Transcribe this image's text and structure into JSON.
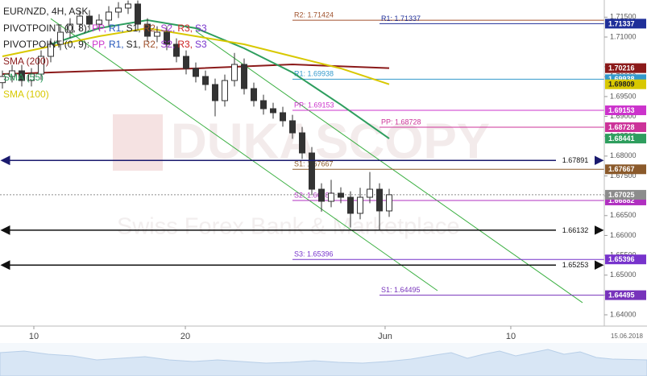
{
  "chart_data": {
    "type": "candlestick",
    "title": "EUR/NZD, 4H, ASK",
    "x": [
      0,
      1,
      2,
      3,
      4,
      5,
      6,
      7,
      8,
      9,
      10,
      11,
      12,
      13,
      14,
      15,
      16,
      17,
      18,
      19,
      20,
      21,
      22,
      23,
      24,
      25,
      26,
      27,
      28,
      29,
      30,
      31,
      32,
      33,
      34,
      35,
      36,
      37,
      38,
      39,
      40
    ],
    "open": [
      1.6985,
      1.70006,
      1.70148,
      1.69904,
      1.70066,
      1.70513,
      1.70817,
      1.71121,
      1.71324,
      1.71527,
      1.71324,
      1.71426,
      1.71629,
      1.7173,
      1.71832,
      1.71324,
      1.7102,
      1.71121,
      1.70817,
      1.70513,
      1.70209,
      1.70006,
      1.69803,
      1.69397,
      1.69904,
      1.7031,
      1.69701,
      1.69397,
      1.69194,
      1.69093,
      1.6889,
      1.68585,
      1.68078,
      1.67165,
      1.66861,
      1.67064,
      1.66962,
      1.66557,
      1.66962,
      1.67165,
      1.66618
    ],
    "high": [
      1.70156,
      1.70298,
      1.70298,
      1.70216,
      1.70663,
      1.70967,
      1.71271,
      1.71474,
      1.71677,
      1.71677,
      1.71576,
      1.71779,
      1.7188,
      1.7192,
      1.7192,
      1.71474,
      1.71271,
      1.71271,
      1.70967,
      1.70663,
      1.70359,
      1.70156,
      1.69953,
      1.70054,
      1.706,
      1.7046,
      1.69851,
      1.69547,
      1.69344,
      1.69243,
      1.6904,
      1.68735,
      1.68228,
      1.67315,
      1.674,
      1.67214,
      1.67112,
      1.672,
      1.676,
      1.67315,
      1.67175
    ],
    "low": [
      1.697,
      1.69856,
      1.69754,
      1.69754,
      1.69916,
      1.70363,
      1.70667,
      1.70971,
      1.71174,
      1.71174,
      1.71174,
      1.71276,
      1.71479,
      1.7158,
      1.71174,
      1.7087,
      1.7087,
      1.70667,
      1.70363,
      1.70059,
      1.69856,
      1.69653,
      1.69,
      1.69247,
      1.69754,
      1.69551,
      1.69247,
      1.69044,
      1.68943,
      1.6874,
      1.68435,
      1.67928,
      1.67015,
      1.666,
      1.66711,
      1.66812,
      1.662,
      1.66407,
      1.66812,
      1.6615,
      1.66468
    ],
    "close": [
      1.70006,
      1.70148,
      1.69904,
      1.70066,
      1.70513,
      1.70817,
      1.71121,
      1.71324,
      1.71527,
      1.71324,
      1.71426,
      1.71629,
      1.7173,
      1.71832,
      1.71324,
      1.7102,
      1.71121,
      1.70817,
      1.70513,
      1.70209,
      1.70006,
      1.69803,
      1.69397,
      1.69904,
      1.7031,
      1.69701,
      1.69397,
      1.69194,
      1.69093,
      1.6889,
      1.68585,
      1.68078,
      1.67165,
      1.66861,
      1.67064,
      1.66962,
      1.66557,
      1.66962,
      1.67165,
      1.66618,
      1.67025
    ],
    "up_color": "#ffffff",
    "down_color": "#333333",
    "current_price_color": "#8c8c8c",
    "xlim": [
      -0.25,
      62.25
    ],
    "xticks": [
      {
        "value": 3.25,
        "label": "10"
      },
      {
        "value": 18.92,
        "label": "20"
      },
      {
        "value": 39.58,
        "label": "Jun"
      },
      {
        "value": 52.58,
        "label": "10"
      }
    ],
    "ylim": [
      1.63716,
      1.71933
    ],
    "yticks": [
      {
        "value": 1.64,
        "label": "1.64000"
      },
      {
        "value": 1.645,
        "label": "1.64500"
      },
      {
        "value": 1.65,
        "label": "1.65000"
      },
      {
        "value": 1.655,
        "label": "1.65500"
      },
      {
        "value": 1.66,
        "label": "1.66000"
      },
      {
        "value": 1.665,
        "label": "1.66500"
      },
      {
        "value": 1.67,
        "label": "1.67000"
      },
      {
        "value": 1.675,
        "label": "1.67500"
      },
      {
        "value": 1.68,
        "label": "1.68000"
      },
      {
        "value": 1.685,
        "label": "1.68500"
      },
      {
        "value": 1.69,
        "label": "1.69000"
      },
      {
        "value": 1.695,
        "label": "1.69500"
      },
      {
        "value": 1.7,
        "label": "1.70000"
      },
      {
        "value": 1.7025,
        "label": "1.70250"
      },
      {
        "value": 1.71,
        "label": "1.71000"
      },
      {
        "value": 1.715,
        "label": "1.71500"
      }
    ],
    "indicators": [
      {
        "name": "SMA (200)",
        "color": "#8b1a1a",
        "text_color": "#ffffff",
        "x": [
          0,
          10,
          20,
          30,
          40
        ],
        "values": [
          1.70066,
          1.70148,
          1.70209,
          1.7031,
          1.70216
        ]
      },
      {
        "name": "SMA (55)",
        "color": "#2e9e5e",
        "text_color": "#ffffff",
        "x": [
          5,
          10,
          15,
          20,
          25,
          30,
          35,
          40
        ],
        "values": [
          1.70817,
          1.71223,
          1.71426,
          1.71223,
          1.70716,
          1.70107,
          1.69296,
          1.68441
        ]
      },
      {
        "name": "SMA (100)",
        "color": "#d8c800",
        "text_color": "#222222",
        "x": [
          0,
          10,
          15,
          20,
          25,
          30,
          35,
          40
        ],
        "values": [
          1.70513,
          1.7102,
          1.71223,
          1.7102,
          1.70817,
          1.70513,
          1.70209,
          1.69809
        ]
      }
    ],
    "pivot_sets": [
      {
        "name": "PIVOTPOINT (0, 8):",
        "items": [
          "PP,",
          "R1,",
          "S1,",
          "R2,",
          "S2,",
          "R3,",
          "S3"
        ],
        "item_colors": [
          "#cc33cc",
          "#2255bb",
          "#222222",
          "#a0522d",
          "#9933cc",
          "#cc2222",
          "#7733cc"
        ],
        "x_start": 30,
        "levels": [
          {
            "label": "R2: 1.71424",
            "value": 1.71424,
            "color": "#a0522d",
            "badge": false
          },
          {
            "label": "R1: 1.69938",
            "value": 1.69938,
            "color": "#3399cc",
            "badge": true
          },
          {
            "label": "PP: 1.69153",
            "value": 1.69153,
            "color": "#cc33cc",
            "badge": true
          },
          {
            "label": "S1: 1.67667",
            "value": 1.67667,
            "color": "#8b5a2b",
            "badge": true
          },
          {
            "label": "S2: 1.66882",
            "value": 1.66882,
            "color": "#b030c0",
            "badge": true
          },
          {
            "label": "S3: 1.65396",
            "value": 1.65396,
            "color": "#7733cc",
            "badge": true
          }
        ]
      },
      {
        "name": "PIVOTPOINT (0, 9):",
        "items": [
          "PP,",
          "R1,",
          "S1,",
          "R2,",
          "S2,",
          "R3,",
          "S3"
        ],
        "item_colors": [
          "#cc33cc",
          "#2255bb",
          "#222222",
          "#a0522d",
          "#9933cc",
          "#cc2222",
          "#7733cc"
        ],
        "x_start": 39,
        "levels": [
          {
            "label": "R1: 1.71337",
            "value": 1.71337,
            "color": "#1f2f99",
            "badge": true
          },
          {
            "label": "PP: 1.68728",
            "value": 1.68728,
            "color": "#cc3399",
            "badge": true
          },
          {
            "label": "S1: 1.64495",
            "value": 1.64495,
            "color": "#7733bb",
            "badge": true
          }
        ]
      }
    ],
    "horizontal_lines": [
      {
        "value": 1.67891,
        "color": "#1a1a6e"
      },
      {
        "value": 1.66132,
        "color": "#111111"
      },
      {
        "value": 1.65253,
        "color": "#111111"
      }
    ],
    "trendlines": [
      {
        "x": [
          5,
          45
        ],
        "values": [
          1.71462,
          1.64609
        ],
        "color": "#3cb043"
      },
      {
        "x": [
          20,
          60
        ],
        "values": [
          1.71148,
          1.64305
        ],
        "color": "#3cb043"
      }
    ],
    "navigator_date": "15.06.2018",
    "watermark": {
      "brand": "DUKASCOPY",
      "tagline": "Swiss Forex Bank & Marketplace"
    }
  }
}
